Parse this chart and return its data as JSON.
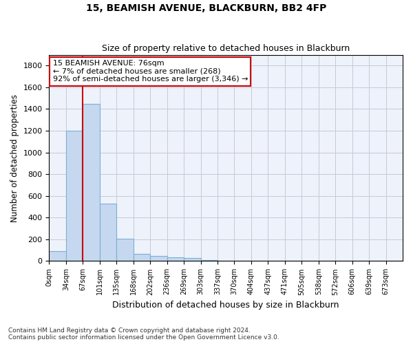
{
  "title": "15, BEAMISH AVENUE, BLACKBURN, BB2 4FP",
  "subtitle": "Size of property relative to detached houses in Blackburn",
  "xlabel": "Distribution of detached houses by size in Blackburn",
  "ylabel": "Number of detached properties",
  "bar_color": "#c5d8ef",
  "bar_edge_color": "#7bafd4",
  "background_color": "#edf2fb",
  "grid_color": "#c8c8d8",
  "categories": [
    "0sqm",
    "34sqm",
    "67sqm",
    "101sqm",
    "135sqm",
    "168sqm",
    "202sqm",
    "236sqm",
    "269sqm",
    "303sqm",
    "337sqm",
    "370sqm",
    "404sqm",
    "437sqm",
    "471sqm",
    "505sqm",
    "538sqm",
    "572sqm",
    "606sqm",
    "639sqm",
    "673sqm"
  ],
  "values": [
    90,
    1200,
    1450,
    530,
    205,
    65,
    47,
    35,
    28,
    10,
    0,
    0,
    0,
    0,
    0,
    0,
    0,
    0,
    0,
    0,
    0
  ],
  "ylim": [
    0,
    1900
  ],
  "yticks": [
    0,
    200,
    400,
    600,
    800,
    1000,
    1200,
    1400,
    1600,
    1800
  ],
  "property_line_x": 2,
  "annotation_box_text": "15 BEAMISH AVENUE: 76sqm\n← 7% of detached houses are smaller (268)\n92% of semi-detached houses are larger (3,346) →",
  "annotation_box_color": "#cc0000",
  "footer_line1": "Contains HM Land Registry data © Crown copyright and database right 2024.",
  "footer_line2": "Contains public sector information licensed under the Open Government Licence v3.0.",
  "fig_width": 6.0,
  "fig_height": 5.0,
  "dpi": 100
}
